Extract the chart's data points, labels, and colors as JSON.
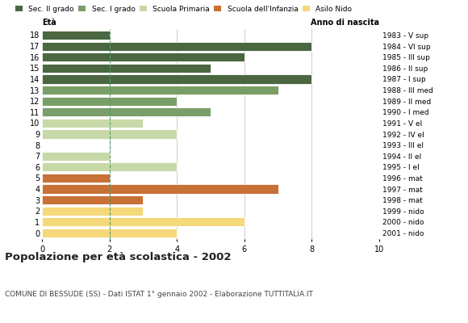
{
  "ages": [
    18,
    17,
    16,
    15,
    14,
    13,
    12,
    11,
    10,
    9,
    8,
    7,
    6,
    5,
    4,
    3,
    2,
    1,
    0
  ],
  "right_labels": [
    "1983 - V sup",
    "1984 - VI sup",
    "1985 - III sup",
    "1986 - II sup",
    "1987 - I sup",
    "1988 - III med",
    "1989 - II med",
    "1990 - I med",
    "1991 - V el",
    "1992 - IV el",
    "1993 - III el",
    "1994 - II el",
    "1995 - I el",
    "1996 - mat",
    "1997 - mat",
    "1998 - mat",
    "1999 - nido",
    "2000 - nido",
    "2001 - nido"
  ],
  "values": [
    2,
    8,
    6,
    5,
    8,
    7,
    4,
    5,
    3,
    4,
    0,
    2,
    4,
    2,
    7,
    3,
    3,
    6,
    4
  ],
  "bar_colors_by_age": {
    "18": "#4a6741",
    "17": "#4a6741",
    "16": "#4a6741",
    "15": "#4a6741",
    "14": "#4a6741",
    "13": "#7a9e68",
    "12": "#7a9e68",
    "11": "#7a9e68",
    "10": "#c8d9a8",
    "9": "#c8d9a8",
    "8": "#c8d9a8",
    "7": "#c8d9a8",
    "6": "#c8d9a8",
    "5": "#c87137",
    "4": "#c87137",
    "3": "#c87137",
    "2": "#f5d87a",
    "1": "#f5d87a",
    "0": "#f5d87a"
  },
  "title": "Popolazione per età scolastica - 2002",
  "subtitle": "COMUNE DI BESSUDE (SS) - Dati ISTAT 1° gennaio 2002 - Elaborazione TUTTITALIA.IT",
  "xlabel_eta": "Età",
  "xlabel_anno": "Anno di nascita",
  "xlim": [
    0,
    10
  ],
  "xticks": [
    0,
    2,
    4,
    6,
    8,
    10
  ],
  "gridline_color": "#cccccc",
  "dashed_line_x": 2,
  "legend_order": [
    "Sec. II grado",
    "Sec. I grado",
    "Scuola Primaria",
    "Scuola dell'Infanzia",
    "Asilo Nido"
  ],
  "legend_colors": [
    "#4a6741",
    "#7a9e68",
    "#c8d9a8",
    "#c87137",
    "#f5d87a"
  ]
}
